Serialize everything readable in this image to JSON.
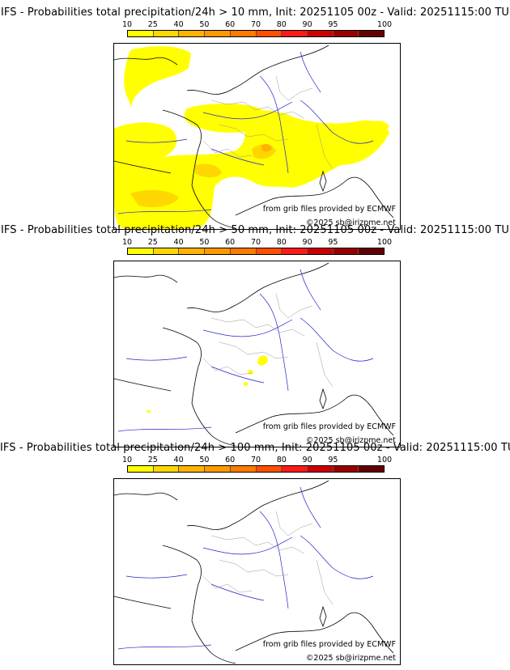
{
  "legend": {
    "ticks": [
      "10",
      "25",
      "40",
      "50",
      "60",
      "70",
      "80",
      "90",
      "95",
      "100"
    ],
    "colors": [
      "#ffff00",
      "#ffd700",
      "#ffb300",
      "#ff9900",
      "#ff7a00",
      "#ff5000",
      "#ff1a1a",
      "#cc0000",
      "#990000",
      "#660000"
    ]
  },
  "panels": [
    {
      "title": "IFS - Probabilities total precipitation/24h > 10 mm, Init: 20251105 00z - Valid: 20251115:00 TU",
      "source": "from grib files provided by ECMWF",
      "copyright": "©2025 sb@irizpme.net"
    },
    {
      "title": "IFS - Probabilities total precipitation/24h > 50 mm, Init: 20251105 00z - Valid: 20251115:00 TU",
      "source": "from grib files provided by ECMWF",
      "copyright": "©2025 sb@irizpme.net"
    },
    {
      "title": "IFS - Probabilities total precipitation/24h > 100 mm, Init: 20251105 00z - Valid: 20251115:00 TU",
      "source": "from grib files provided by ECMWF",
      "copyright": "©2025 sb@irizpme.net"
    }
  ],
  "map": {
    "water_color": "#ffffff",
    "coast_color": "#000000",
    "river_color": "#2222cc",
    "border_color": "#999999",
    "precip_colors": {
      "p10": "#ffff00",
      "p25": "#ffd700",
      "p40": "#ffb300"
    }
  }
}
